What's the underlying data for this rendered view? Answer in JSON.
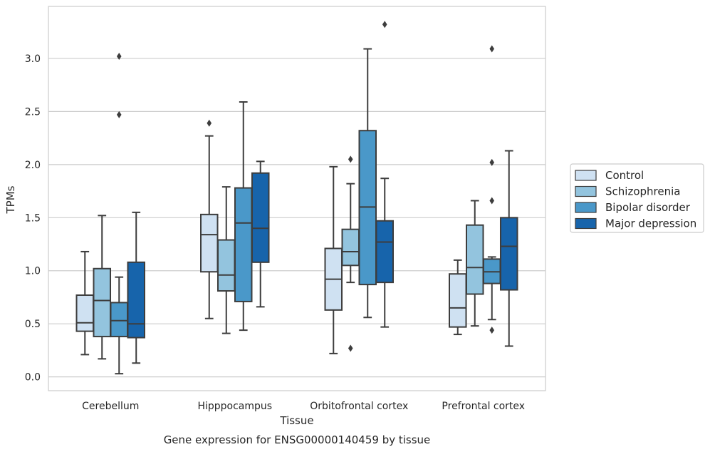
{
  "chart_data": {
    "type": "box",
    "title": "",
    "xlabel": "Tissue",
    "ylabel": "TPMs",
    "caption": "Gene expression for ENSG00000140459 by tissue",
    "ylim": [
      -0.13,
      3.49
    ],
    "yticks": [
      "0.0",
      "0.5",
      "1.0",
      "1.5",
      "2.0",
      "2.5",
      "3.0"
    ],
    "grid": true,
    "legend_position": "right",
    "categories": [
      "Cerebellum",
      "Hipppocampus",
      "Orbitofrontal cortex",
      "Prefrontal cortex"
    ],
    "series": [
      {
        "name": "Control",
        "color": "#cfe1f2",
        "boxes": [
          {
            "whislo": 0.21,
            "q1": 0.43,
            "med": 0.51,
            "q3": 0.77,
            "whishi": 1.18,
            "fliers": []
          },
          {
            "whislo": 0.55,
            "q1": 0.99,
            "med": 1.34,
            "q3": 1.53,
            "whishi": 2.27,
            "fliers": [
              2.39
            ]
          },
          {
            "whislo": 0.22,
            "q1": 0.63,
            "med": 0.92,
            "q3": 1.21,
            "whishi": 1.98,
            "fliers": []
          },
          {
            "whislo": 0.4,
            "q1": 0.47,
            "med": 0.65,
            "q3": 0.97,
            "whishi": 1.1,
            "fliers": []
          }
        ]
      },
      {
        "name": "Schizophrenia",
        "color": "#93c4de",
        "boxes": [
          {
            "whislo": 0.17,
            "q1": 0.38,
            "med": 0.72,
            "q3": 1.02,
            "whishi": 1.52,
            "fliers": []
          },
          {
            "whislo": 0.41,
            "q1": 0.81,
            "med": 0.96,
            "q3": 1.29,
            "whishi": 1.79,
            "fliers": []
          },
          {
            "whislo": 0.89,
            "q1": 1.05,
            "med": 1.18,
            "q3": 1.39,
            "whishi": 1.82,
            "fliers": [
              2.05,
              0.27
            ]
          },
          {
            "whislo": 0.48,
            "q1": 0.78,
            "med": 1.03,
            "q3": 1.43,
            "whishi": 1.66,
            "fliers": []
          }
        ]
      },
      {
        "name": "Bipolar disorder",
        "color": "#4a98c9",
        "boxes": [
          {
            "whislo": 0.03,
            "q1": 0.38,
            "med": 0.53,
            "q3": 0.7,
            "whishi": 0.94,
            "fliers": [
              3.02,
              2.47
            ]
          },
          {
            "whislo": 0.44,
            "q1": 0.71,
            "med": 1.45,
            "q3": 1.78,
            "whishi": 2.59,
            "fliers": []
          },
          {
            "whislo": 0.56,
            "q1": 0.87,
            "med": 1.6,
            "q3": 2.32,
            "whishi": 3.09,
            "fliers": []
          },
          {
            "whislo": 0.54,
            "q1": 0.88,
            "med": 0.99,
            "q3": 1.11,
            "whishi": 1.13,
            "fliers": [
              3.09,
              2.02,
              1.66,
              0.44
            ]
          }
        ]
      },
      {
        "name": "Major depression",
        "color": "#1764ab",
        "boxes": [
          {
            "whislo": 0.13,
            "q1": 0.37,
            "med": 0.5,
            "q3": 1.08,
            "whishi": 1.55,
            "fliers": []
          },
          {
            "whislo": 0.66,
            "q1": 1.08,
            "med": 1.4,
            "q3": 1.92,
            "whishi": 2.03,
            "fliers": []
          },
          {
            "whislo": 0.47,
            "q1": 0.89,
            "med": 1.27,
            "q3": 1.47,
            "whishi": 1.87,
            "fliers": [
              3.32
            ]
          },
          {
            "whislo": 0.29,
            "q1": 0.82,
            "med": 1.23,
            "q3": 1.5,
            "whishi": 2.13,
            "fliers": []
          }
        ]
      }
    ]
  }
}
